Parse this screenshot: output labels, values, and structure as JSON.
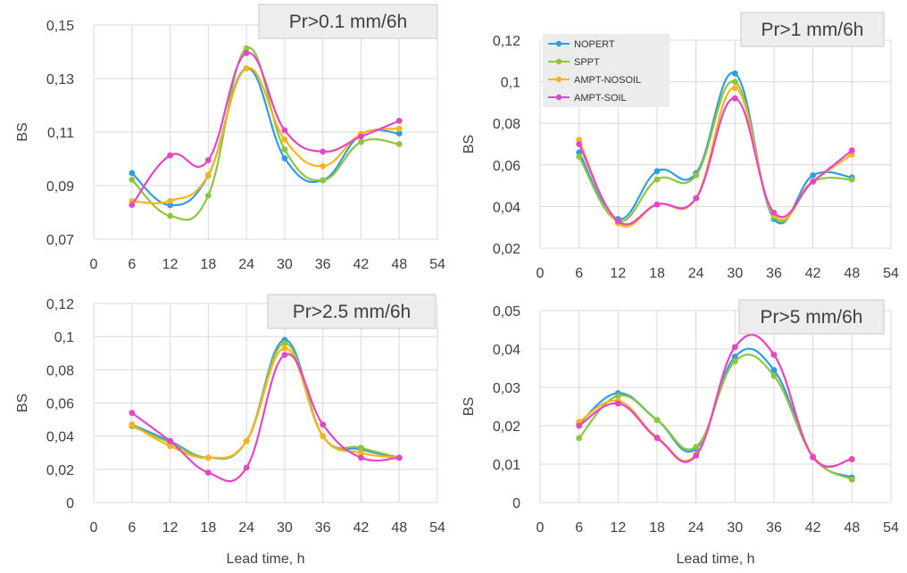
{
  "chart_data": [
    {
      "type": "line",
      "title": "Pr>0.1 mm/6h",
      "ylabel": "BS",
      "xlabel": "",
      "xlim": [
        0,
        54
      ],
      "xticks": [
        0,
        6,
        12,
        18,
        24,
        30,
        36,
        42,
        48,
        54
      ],
      "ylim": [
        0.07,
        0.15
      ],
      "yticks": [
        "0,07",
        "0,09",
        "0,11",
        "0,13",
        "0,15"
      ],
      "x": [
        6,
        12,
        18,
        24,
        30,
        36,
        42,
        48
      ],
      "grid": true,
      "series": [
        {
          "name": "NOPERT",
          "values": [
            0.0947,
            0.0827,
            0.0938,
            0.1338,
            0.1002,
            0.092,
            0.1092,
            0.1095
          ]
        },
        {
          "name": "SPPT",
          "values": [
            0.0922,
            0.0787,
            0.0863,
            0.1413,
            0.1035,
            0.092,
            0.1063,
            0.1055
          ]
        },
        {
          "name": "AMPT-NOSOIL",
          "values": [
            0.0842,
            0.0843,
            0.094,
            0.1338,
            0.1072,
            0.0973,
            0.1093,
            0.1113
          ]
        },
        {
          "name": "AMPT-SOIL",
          "values": [
            0.0828,
            0.1013,
            0.0995,
            0.1395,
            0.1107,
            0.1027,
            0.1083,
            0.1142
          ]
        }
      ]
    },
    {
      "type": "line",
      "title": "Pr>1 mm/6h",
      "ylabel": "BS",
      "xlabel": "",
      "xlim": [
        0,
        54
      ],
      "xticks": [
        0,
        6,
        12,
        18,
        24,
        30,
        36,
        42,
        48,
        54
      ],
      "ylim": [
        0.02,
        0.12
      ],
      "yticks": [
        "0,02",
        "0,04",
        "0,06",
        "0,08",
        "0,1",
        "0,12"
      ],
      "x": [
        6,
        12,
        18,
        24,
        30,
        36,
        42,
        48
      ],
      "grid": true,
      "legend": "top-left",
      "series": [
        {
          "name": "NOPERT",
          "values": [
            0.066,
            0.034,
            0.057,
            0.056,
            0.104,
            0.034,
            0.055,
            0.054
          ]
        },
        {
          "name": "SPPT",
          "values": [
            0.064,
            0.033,
            0.053,
            0.055,
            0.1,
            0.035,
            0.052,
            0.053
          ]
        },
        {
          "name": "AMPT-NOSOIL",
          "values": [
            0.072,
            0.032,
            0.041,
            0.044,
            0.097,
            0.036,
            0.052,
            0.065
          ]
        },
        {
          "name": "AMPT-SOIL",
          "values": [
            0.07,
            0.033,
            0.041,
            0.044,
            0.092,
            0.037,
            0.052,
            0.067
          ]
        }
      ]
    },
    {
      "type": "line",
      "title": "Pr>2.5 mm/6h",
      "ylabel": "BS",
      "xlabel": "Lead time, h",
      "xlim": [
        0,
        54
      ],
      "xticks": [
        0,
        6,
        12,
        18,
        24,
        30,
        36,
        42,
        48,
        54
      ],
      "ylim": [
        0,
        0.12
      ],
      "yticks": [
        "0",
        "0,02",
        "0,04",
        "0,06",
        "0,08",
        "0,1",
        "0,12"
      ],
      "x": [
        6,
        12,
        18,
        24,
        30,
        36,
        42,
        48
      ],
      "grid": true,
      "series": [
        {
          "name": "NOPERT",
          "values": [
            0.047,
            0.037,
            0.027,
            0.037,
            0.098,
            0.04,
            0.032,
            0.027
          ]
        },
        {
          "name": "SPPT",
          "values": [
            0.046,
            0.036,
            0.027,
            0.037,
            0.096,
            0.04,
            0.033,
            0.027
          ]
        },
        {
          "name": "AMPT-NOSOIL",
          "values": [
            0.047,
            0.034,
            0.027,
            0.037,
            0.093,
            0.04,
            0.03,
            0.027
          ]
        },
        {
          "name": "AMPT-SOIL",
          "values": [
            0.054,
            0.037,
            0.018,
            0.021,
            0.089,
            0.047,
            0.027,
            0.027
          ]
        }
      ]
    },
    {
      "type": "line",
      "title": "Pr>5 mm/6h",
      "ylabel": "BS",
      "xlabel": "Lead time, h",
      "xlim": [
        0,
        54
      ],
      "xticks": [
        0,
        6,
        12,
        18,
        24,
        30,
        36,
        42,
        48,
        54
      ],
      "ylim": [
        0,
        0.05
      ],
      "yticks": [
        "0",
        "0,01",
        "0,02",
        "0,03",
        "0,04",
        "0,05"
      ],
      "x": [
        6,
        12,
        18,
        24,
        30,
        36,
        42,
        48
      ],
      "grid": true,
      "series": [
        {
          "name": "NOPERT",
          "values": [
            0.0205,
            0.0285,
            0.0215,
            0.014,
            0.038,
            0.0345,
            0.012,
            0.0065
          ]
        },
        {
          "name": "SPPT",
          "values": [
            0.0168,
            0.0278,
            0.0215,
            0.0145,
            0.0368,
            0.033,
            0.012,
            0.006
          ]
        },
        {
          "name": "AMPT-NOSOIL",
          "values": [
            0.021,
            0.0265,
            0.017,
            0.0125,
            0.0405,
            0.0385,
            0.012,
            0.0112
          ]
        },
        {
          "name": "AMPT-SOIL",
          "values": [
            0.02,
            0.0258,
            0.0168,
            0.0122,
            0.0405,
            0.0385,
            0.0118,
            0.0113
          ]
        }
      ]
    }
  ],
  "series_colors": {
    "NOPERT": "#2f9de0",
    "SPPT": "#8cc63f",
    "AMPT-NOSOIL": "#f7b51a",
    "AMPT-SOIL": "#e645c8"
  }
}
